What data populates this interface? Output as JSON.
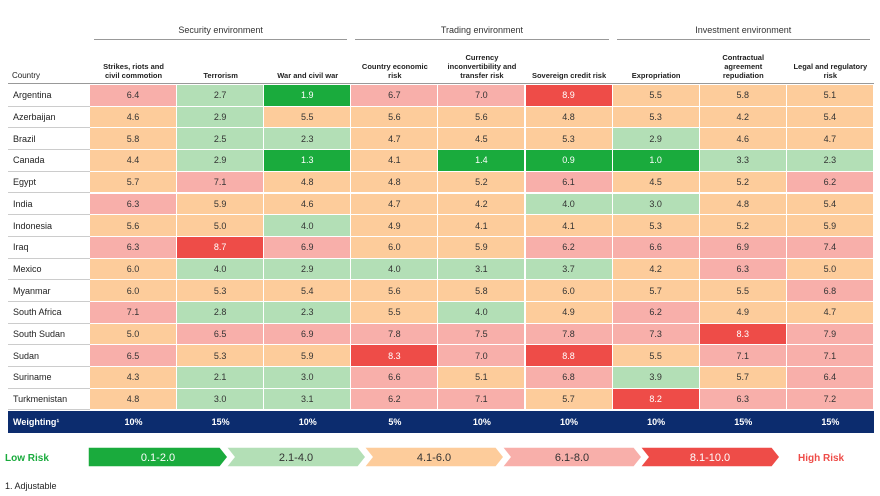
{
  "groups": [
    "Security environment",
    "Trading environment",
    "Investment environment"
  ],
  "table": {
    "header": [
      "Country",
      "Strikes, riots and civil commotion",
      "Terrorism",
      "War and civil war",
      "Country economic risk",
      "Currency inconvertibility and transfer risk",
      "Sovereign credit risk",
      "Expropriation",
      "Contractual agreement repudiation",
      "Legal and regulatory risk"
    ],
    "rows": [
      [
        "Argentina",
        "6.4",
        "2.7",
        "1.9",
        "6.7",
        "7.0",
        "8.9",
        "5.5",
        "5.8",
        "5.1"
      ],
      [
        "Azerbaijan",
        "4.6",
        "2.9",
        "5.5",
        "5.6",
        "5.6",
        "4.8",
        "5.3",
        "4.2",
        "5.4"
      ],
      [
        "Brazil",
        "5.8",
        "2.5",
        "2.3",
        "4.7",
        "4.5",
        "5.3",
        "2.9",
        "4.6",
        "4.7"
      ],
      [
        "Canada",
        "4.4",
        "2.9",
        "1.3",
        "4.1",
        "1.4",
        "0.9",
        "1.0",
        "3.3",
        "2.3"
      ],
      [
        "Egypt",
        "5.7",
        "7.1",
        "4.8",
        "4.8",
        "5.2",
        "6.1",
        "4.5",
        "5.2",
        "6.2"
      ],
      [
        "India",
        "6.3",
        "5.9",
        "4.6",
        "4.7",
        "4.2",
        "4.0",
        "3.0",
        "4.8",
        "5.4"
      ],
      [
        "Indonesia",
        "5.6",
        "5.0",
        "4.0",
        "4.9",
        "4.1",
        "4.1",
        "5.3",
        "5.2",
        "5.9"
      ],
      [
        "Iraq",
        "6.3",
        "8.7",
        "6.9",
        "6.0",
        "5.9",
        "6.2",
        "6.6",
        "6.9",
        "7.4"
      ],
      [
        "Mexico",
        "6.0",
        "4.0",
        "2.9",
        "4.0",
        "3.1",
        "3.7",
        "4.2",
        "6.3",
        "5.0"
      ],
      [
        "Myanmar",
        "6.0",
        "5.3",
        "5.4",
        "5.6",
        "5.8",
        "6.0",
        "5.7",
        "5.5",
        "6.8"
      ],
      [
        "South Africa",
        "7.1",
        "2.8",
        "2.3",
        "5.5",
        "4.0",
        "4.9",
        "6.2",
        "4.9",
        "4.7"
      ],
      [
        "South Sudan",
        "5.0",
        "6.5",
        "6.9",
        "7.8",
        "7.5",
        "7.8",
        "7.3",
        "8.3",
        "7.9"
      ],
      [
        "Sudan",
        "6.5",
        "5.3",
        "5.9",
        "8.3",
        "7.0",
        "8.8",
        "5.5",
        "7.1",
        "7.1"
      ],
      [
        "Suriname",
        "4.3",
        "2.1",
        "3.0",
        "6.6",
        "5.1",
        "6.8",
        "3.9",
        "5.7",
        "6.4"
      ],
      [
        "Turkmenistan",
        "4.8",
        "3.0",
        "3.1",
        "6.2",
        "7.1",
        "5.7",
        "8.2",
        "6.3",
        "7.2"
      ]
    ],
    "weighting": [
      "Weighting¹",
      "10%",
      "15%",
      "10%",
      "5%",
      "10%",
      "10%",
      "10%",
      "15%",
      "15%"
    ]
  },
  "legend": {
    "low": "Low Risk",
    "high": "High Risk",
    "items": [
      {
        "label": "0.1-2.0",
        "color": "#1aab3d",
        "text_color": "#ffffff"
      },
      {
        "label": "2.1-4.0",
        "color": "#b3dfb6",
        "text_color": "#333333"
      },
      {
        "label": "4.1-6.0",
        "color": "#fdcc9b",
        "text_color": "#333333"
      },
      {
        "label": "6.1-8.0",
        "color": "#f8afaa",
        "text_color": "#333333"
      },
      {
        "label": "8.1-10.0",
        "color": "#ee4c48",
        "text_color": "#ffffff"
      }
    ]
  },
  "footnote": "1. Adjustable"
}
